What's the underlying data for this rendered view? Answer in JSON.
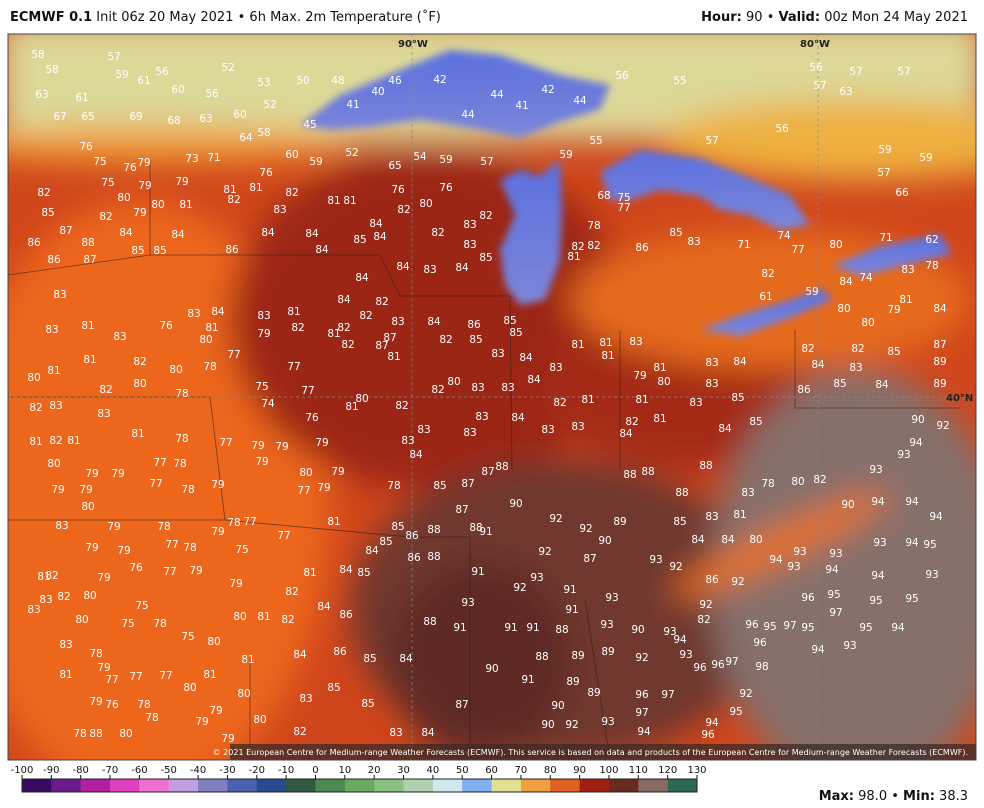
{
  "header": {
    "model": "ECMWF 0.1",
    "init": "Init 06z 20 May 2021",
    "separator": "•",
    "product": "6h Max. 2m Temperature (˚F)",
    "hour_label": "Hour:",
    "hour": "90",
    "valid_label": "Valid:",
    "valid": "00z Mon 24 May 2021"
  },
  "map": {
    "grid_labels": [
      "90°W",
      "80°W",
      "40°N"
    ],
    "temperatures": [
      58,
      58,
      57,
      56,
      59,
      61,
      60,
      56,
      52,
      53,
      50,
      48,
      46,
      42,
      40,
      41,
      63,
      61,
      67,
      65,
      69,
      68,
      63,
      60,
      52,
      45,
      64,
      58,
      60,
      59,
      52,
      54,
      65,
      44,
      44,
      41,
      42,
      44,
      56,
      55,
      56,
      57,
      57,
      57,
      63,
      56,
      57,
      55,
      59,
      57,
      59,
      59,
      59,
      57,
      66,
      76,
      75,
      76,
      79,
      73,
      71,
      76,
      75,
      79,
      79,
      81,
      81,
      82,
      82,
      80,
      80,
      81,
      82,
      81,
      81,
      76,
      76,
      80,
      82,
      85,
      82,
      84,
      79,
      83,
      87,
      88,
      84,
      84,
      84,
      84,
      84,
      85,
      83,
      82,
      82,
      86,
      86,
      87,
      85,
      85,
      86,
      84,
      84,
      83,
      84,
      85,
      83,
      78,
      77,
      75,
      68,
      82,
      82,
      81,
      86,
      85,
      83,
      71,
      74,
      77,
      82,
      80,
      71,
      62,
      61,
      59,
      84,
      74,
      83,
      78,
      81,
      84,
      79,
      80,
      80,
      82,
      82,
      85,
      87,
      89,
      84,
      83,
      84,
      85,
      86,
      89,
      90,
      92,
      94,
      93,
      93,
      90,
      94,
      94,
      94,
      93,
      94,
      95,
      94,
      93,
      95,
      95,
      95,
      94,
      93,
      94,
      95,
      97,
      96,
      95,
      96,
      95,
      97,
      96,
      93,
      94,
      93,
      93,
      94,
      88,
      90,
      92,
      92,
      89,
      92,
      93,
      87,
      90,
      93,
      92,
      88,
      88,
      88,
      88,
      83,
      78,
      80,
      82,
      83,
      81,
      85,
      84,
      84,
      80,
      86,
      92,
      92,
      82,
      93,
      94,
      93,
      96,
      92,
      90,
      93,
      88,
      91,
      91,
      91,
      88,
      91,
      93,
      92,
      91,
      91,
      93,
      90,
      91,
      88,
      89,
      89,
      89,
      89,
      90,
      90,
      92,
      93,
      96,
      97,
      97,
      94,
      94,
      96,
      95,
      96,
      92,
      97,
      98,
      83,
      83,
      81,
      83,
      76,
      83,
      84,
      81,
      80,
      83,
      81,
      82,
      79,
      77,
      78,
      75,
      74,
      77,
      81,
      82,
      80,
      81,
      82,
      80,
      80,
      78,
      77,
      76,
      82,
      83,
      83,
      81,
      78,
      77,
      79,
      79,
      79,
      79,
      80,
      79,
      81,
      82,
      81,
      80,
      79,
      79,
      77,
      78,
      77,
      78,
      79,
      77,
      79,
      78,
      79,
      79,
      80,
      83,
      79,
      78,
      77,
      78,
      79,
      78,
      77,
      77,
      81,
      79,
      79,
      75,
      81,
      82,
      79,
      76,
      77,
      79,
      79,
      82,
      80,
      75,
      83,
      83,
      80,
      75,
      78,
      75,
      80,
      80,
      81,
      82,
      84,
      86,
      82,
      81,
      84,
      85,
      84,
      85,
      85,
      86,
      88,
      84,
      86,
      85,
      85,
      82,
      85,
      83,
      84,
      83,
      84,
      81,
      81,
      81,
      83,
      81,
      80,
      79,
      83,
      84,
      83,
      80,
      82,
      83,
      83,
      82,
      81,
      81,
      83,
      85,
      83,
      84,
      83,
      83,
      83,
      82,
      81,
      84,
      84,
      85,
      81,
      82,
      82,
      87,
      83,
      82,
      82,
      84,
      84,
      87,
      81,
      80,
      82,
      81,
      83,
      83,
      84,
      85,
      87,
      87,
      87,
      88,
      91,
      86,
      88,
      84,
      86,
      85,
      84,
      85,
      83,
      85,
      83,
      84,
      87,
      82,
      80,
      80,
      79,
      81,
      77,
      77,
      77,
      80,
      81,
      81,
      79,
      76,
      78,
      78,
      79,
      79,
      78,
      88,
      80,
      83,
      78,
      79
    ],
    "credit": "© 2021 European Centre for Medium-range Weather Forecasts (ECMWF). This service is based on data and products of the European Centre for Medium-range Weather Forecasts (ECMWF)."
  },
  "colorbar": {
    "ticks": [
      -100,
      -90,
      -80,
      -70,
      -60,
      -50,
      -40,
      -30,
      -20,
      -10,
      0,
      10,
      20,
      30,
      40,
      50,
      60,
      70,
      80,
      90,
      100,
      110,
      120,
      130
    ]
  },
  "footer": {
    "max_label": "Max:",
    "max": "98.0",
    "min_label": "Min:",
    "min": "38.3"
  }
}
